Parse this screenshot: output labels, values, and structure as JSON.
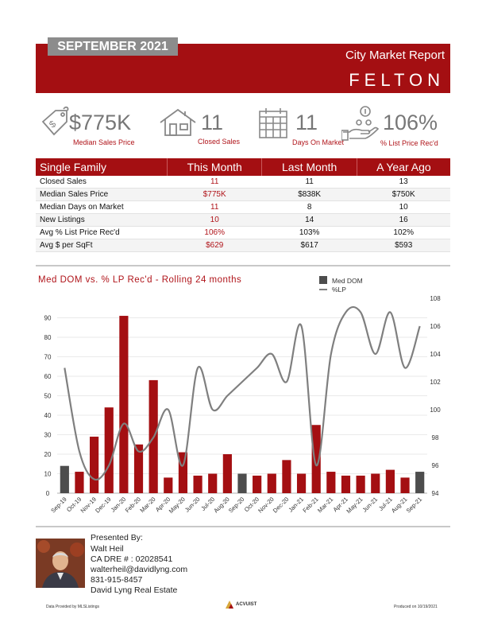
{
  "header": {
    "month": "SEPTEMBER 2021",
    "report_label": "City Market Report",
    "city": "FELTON"
  },
  "stats": [
    {
      "value": "$775K",
      "label": "Median Sales Price",
      "icon": "price-tag-icon"
    },
    {
      "value": "11",
      "label": "Closed Sales",
      "icon": "house-icon"
    },
    {
      "value": "11",
      "label": "Days On Market",
      "icon": "calendar-icon"
    },
    {
      "value": "106%",
      "label": "% List Price Rec'd",
      "icon": "hand-coins-icon"
    }
  ],
  "table": {
    "headers": [
      "Single Family",
      "This Month",
      "Last Month",
      "A Year Ago"
    ],
    "rows": [
      {
        "label": "Closed Sales",
        "this_month": "11",
        "last_month": "11",
        "year_ago": "13"
      },
      {
        "label": "Median Sales Price",
        "this_month": "$775K",
        "last_month": "$838K",
        "year_ago": "$750K"
      },
      {
        "label": "Median Days on Market",
        "this_month": "11",
        "last_month": "8",
        "year_ago": "10"
      },
      {
        "label": "New Listings",
        "this_month": "10",
        "last_month": "14",
        "year_ago": "16"
      },
      {
        "label": "Avg % List Price Rec'd",
        "this_month": "106%",
        "last_month": "103%",
        "year_ago": "102%"
      },
      {
        "label": "Avg $ per SqFt",
        "this_month": "$629",
        "last_month": "$617",
        "year_ago": "$593"
      }
    ]
  },
  "chart_data": {
    "type": "bar",
    "title": "Med DOM vs. % LP Rec'd - Rolling 24 months",
    "categories": [
      "Sep-19",
      "Oct-19",
      "Nov-19",
      "Dec-19",
      "Jan-20",
      "Feb-20",
      "Mar-20",
      "Apr-20",
      "May-20",
      "Jun-20",
      "Jul-20",
      "Aug-20",
      "Sep-20",
      "Oct-20",
      "Nov-20",
      "Dec-20",
      "Jan-21",
      "Feb-21",
      "Mar-21",
      "Apr-21",
      "May-21",
      "Jun-21",
      "Jul-21",
      "Aug-21",
      "Sep-21"
    ],
    "series": [
      {
        "name": "Med DOM",
        "type": "bar",
        "axis": "left",
        "values": [
          14,
          11,
          29,
          44,
          91,
          25,
          58,
          8,
          21,
          9,
          10,
          20,
          10,
          9,
          10,
          17,
          10,
          35,
          11,
          9,
          9,
          10,
          12,
          8,
          11
        ]
      },
      {
        "name": "%LP",
        "type": "line",
        "axis": "right",
        "values": [
          103,
          97,
          95,
          96,
          99,
          97,
          98,
          100,
          96,
          103,
          100,
          101,
          102,
          103,
          104,
          102,
          106,
          96,
          104,
          107,
          107,
          104,
          107,
          103,
          106
        ]
      }
    ],
    "ylim_left": [
      0,
      100
    ],
    "yticks_left": [
      0,
      10,
      20,
      30,
      40,
      50,
      60,
      70,
      80,
      90
    ],
    "ylim_right": [
      94,
      108
    ],
    "yticks_right": [
      94,
      96,
      98,
      100,
      102,
      104,
      106,
      108
    ],
    "bar_colors": {
      "grey": "#4d4d4d",
      "red": "#a40f12"
    },
    "bar_color_pattern": [
      "grey",
      "red",
      "red",
      "red",
      "red",
      "red",
      "red",
      "red",
      "red",
      "red",
      "red",
      "red",
      "grey",
      "red",
      "red",
      "red",
      "red",
      "red",
      "red",
      "red",
      "red",
      "red",
      "red",
      "red",
      "grey"
    ],
    "line_color": "#7f7f7f",
    "legend_position": "top-right",
    "grid": true
  },
  "presenter": {
    "heading": "Presented By:",
    "name": "Walt Heil",
    "license": "CA DRE # : 02028541",
    "email": "walterheil@davidlyng.com",
    "phone": "831-915-8457",
    "company": "David Lyng Real Estate"
  },
  "footer": {
    "source": "Data Provided by MLSListings",
    "logo_text": "ACVUIST",
    "produced": "Produced on 10/19/2021"
  },
  "colors": {
    "brand_red": "#a40f12",
    "accent_red": "#b0141a",
    "grey": "#8c8c8c"
  }
}
